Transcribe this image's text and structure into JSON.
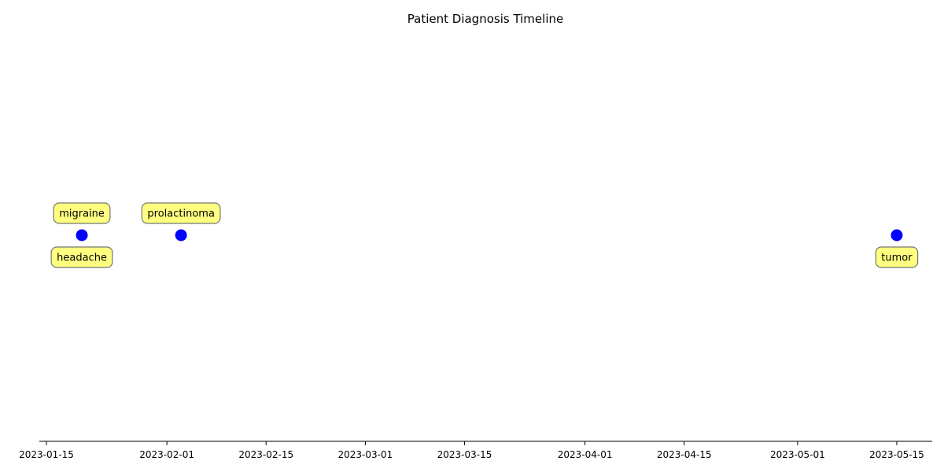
{
  "chart_data": {
    "type": "scatter",
    "title": "Patient Diagnosis Timeline",
    "xlabel": "",
    "ylabel": "",
    "x_axis_type": "date",
    "xlim": [
      "2023-01-14",
      "2023-05-20"
    ],
    "x_ticks": [
      "2023-01-15",
      "2023-02-01",
      "2023-02-15",
      "2023-03-01",
      "2023-03-15",
      "2023-04-01",
      "2023-04-15",
      "2023-05-01",
      "2023-05-15"
    ],
    "grid": false,
    "y_axis_visible": false,
    "marker_color": "#0000ff",
    "annotation_box_color": "#ffff80",
    "points": [
      {
        "date": "2023-01-20",
        "annotations": [
          {
            "text": "migraine",
            "position": "above"
          },
          {
            "text": "headache",
            "position": "below"
          }
        ]
      },
      {
        "date": "2023-02-03",
        "annotations": [
          {
            "text": "prolactinoma",
            "position": "above"
          }
        ]
      },
      {
        "date": "2023-05-15",
        "annotations": [
          {
            "text": "tumor",
            "position": "below"
          }
        ]
      }
    ]
  }
}
